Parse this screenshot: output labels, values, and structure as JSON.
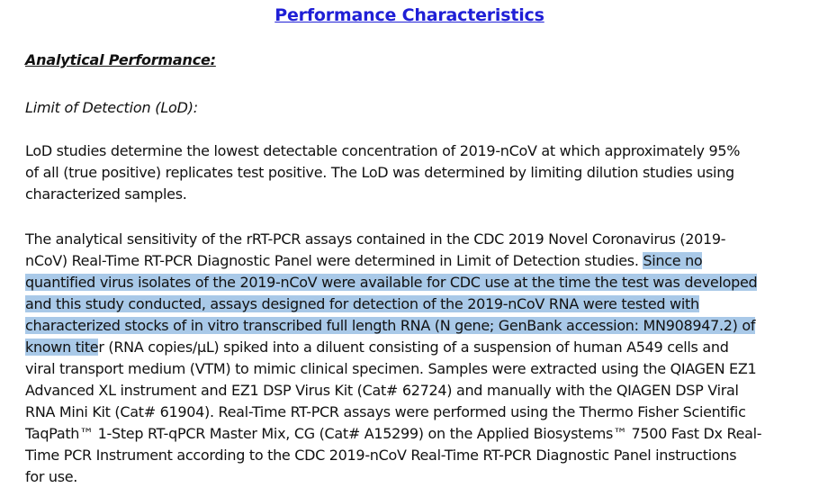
{
  "document": {
    "title": "Performance Characteristics",
    "section_heading": "Analytical Performance:",
    "sub_heading": "Limit of Detection (LoD):",
    "paragraph1_lines": [
      "LoD studies determine the lowest detectable concentration of 2019-nCoV at which approximately 95%",
      "of all (true positive) replicates test positive.  The LoD was determined by limiting dilution studies using",
      "characterized samples."
    ],
    "paragraph2": {
      "line1": "The analytical sensitivity of the rRT-PCR assays contained in the CDC 2019 Novel Coronavirus (2019-",
      "line2_plain": "nCoV) Real-Time RT-PCR Diagnostic Panel were determined in Limit of Detection studies. ",
      "line2_highlight": "Since no",
      "line3_highlight": "quantified virus isolates of the 2019-nCoV were available for CDC use at the time the test was developed",
      "line4_highlight": "and this study conducted, assays designed for detection of the 2019-nCoV RNA were tested with",
      "line5_highlight": "characterized stocks of in vitro transcribed full length RNA (N gene; GenBank accession: MN908947.2) of",
      "line6_highlight": "known tite",
      "line6_plain": "r (RNA copies/μL) spiked into a diluent consisting of a suspension of human A549 cells and",
      "line7": "viral transport medium (VTM) to mimic clinical specimen. Samples were extracted using the QIAGEN EZ1",
      "line8": "Advanced XL instrument and EZ1 DSP Virus Kit (Cat# 62724) and manually with the QIAGEN DSP Viral",
      "line9": "RNA Mini Kit (Cat# 61904). Real-Time RT-PCR assays were performed using the Thermo Fisher Scientific",
      "line10": "TaqPath™ 1-Step RT-qPCR Master Mix, CG (Cat# A15299) on the Applied Biosystems™ 7500 Fast Dx Real-",
      "line11": "Time PCR Instrument according to the CDC 2019-nCoV Real-Time RT-PCR Diagnostic Panel instructions",
      "line12": "for use."
    }
  },
  "colors": {
    "title": "#1f1fd6",
    "highlight": "#a9c9e8",
    "text": "#111111"
  }
}
